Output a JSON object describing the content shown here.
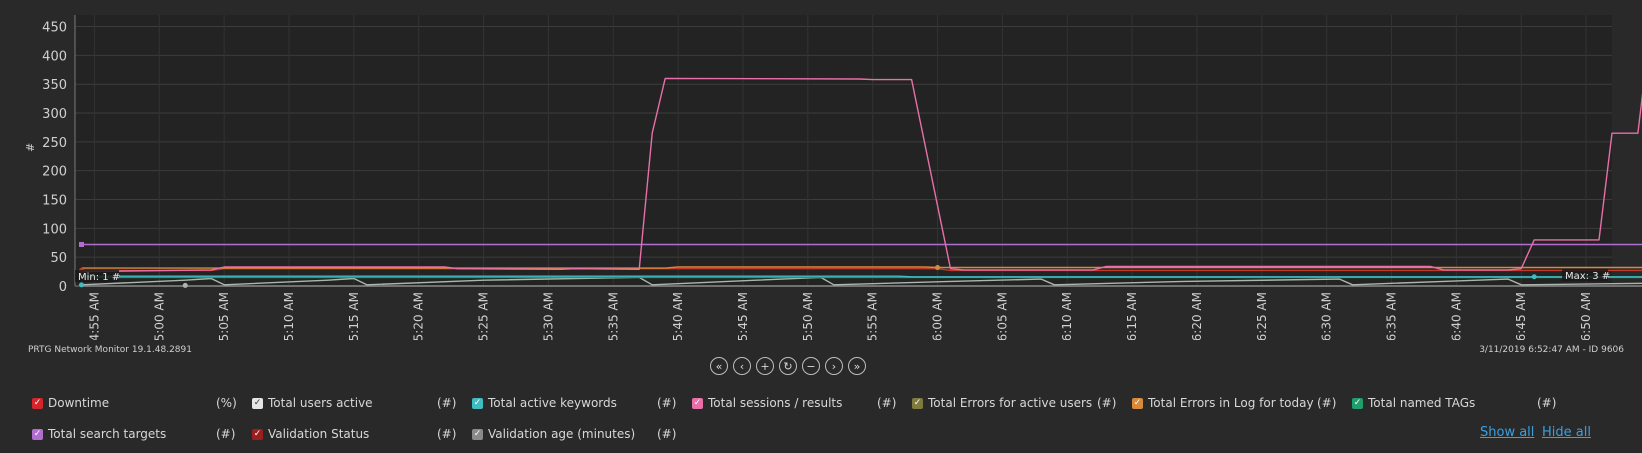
{
  "chart_data": {
    "type": "line",
    "ylabel": "#",
    "ylim": [
      0,
      470
    ],
    "yticks": [
      0,
      50,
      100,
      150,
      200,
      250,
      300,
      350,
      400,
      450
    ],
    "x_tick_labels": [
      "4:55 AM",
      "5:00 AM",
      "5:05 AM",
      "5:10 AM",
      "5:15 AM",
      "5:20 AM",
      "5:25 AM",
      "5:30 AM",
      "5:35 AM",
      "5:40 AM",
      "5:45 AM",
      "5:50 AM",
      "5:55 AM",
      "6:00 AM",
      "6:05 AM",
      "6:10 AM",
      "6:15 AM",
      "6:20 AM",
      "6:25 AM",
      "6:30 AM",
      "6:35 AM",
      "6:40 AM",
      "6:45 AM",
      "6:50 AM"
    ],
    "x_range_minutes": [
      293.5,
      412
    ],
    "grid": true,
    "min_label": "Min: 1 #",
    "max_label": "Max: 3 #",
    "series": [
      {
        "name": "Total sessions / results",
        "color": "#e86fa8",
        "points": [
          [
            294,
            25
          ],
          [
            304,
            28
          ],
          [
            305,
            33
          ],
          [
            322,
            33
          ],
          [
            323,
            30
          ],
          [
            331,
            29
          ],
          [
            332,
            30
          ],
          [
            337,
            29
          ],
          [
            338,
            265
          ],
          [
            339,
            360
          ],
          [
            354,
            359
          ],
          [
            355,
            358
          ],
          [
            358,
            358
          ],
          [
            361,
            30
          ],
          [
            362,
            28
          ],
          [
            372,
            28
          ],
          [
            373,
            34
          ],
          [
            398,
            34
          ],
          [
            399,
            28
          ],
          [
            404,
            28
          ],
          [
            405,
            30
          ],
          [
            406,
            80
          ],
          [
            411,
            80
          ],
          [
            412,
            265
          ],
          [
            414,
            265
          ],
          [
            415,
            455
          ],
          [
            416,
            455
          ]
        ]
      },
      {
        "name": "Total search targets",
        "color": "#b06fd0",
        "points": [
          [
            294,
            72
          ],
          [
            416,
            72
          ]
        ]
      },
      {
        "name": "Total Errors in Log for today",
        "color": "#d88a3a",
        "points": [
          [
            294,
            31
          ],
          [
            339,
            31
          ],
          [
            340,
            33
          ],
          [
            359,
            33
          ],
          [
            360,
            32
          ],
          [
            416,
            32
          ]
        ]
      },
      {
        "name": "Validation Status",
        "color": "#c0392b",
        "points": [
          [
            294,
            27
          ],
          [
            304,
            27
          ],
          [
            305,
            30
          ],
          [
            360,
            30
          ],
          [
            361,
            27
          ],
          [
            416,
            27
          ]
        ]
      },
      {
        "name": "Total active keywords",
        "color": "#3fbcc0",
        "points": [
          [
            294,
            17
          ],
          [
            357,
            17
          ],
          [
            358,
            16
          ],
          [
            416,
            16
          ]
        ]
      },
      {
        "name": "Total named TAGs",
        "color": "#1f9e6c",
        "points": [
          [
            294,
            15
          ],
          [
            416,
            15
          ]
        ]
      },
      {
        "name": "Total users active",
        "color": "#aab5b0",
        "points": [
          [
            294,
            2
          ],
          [
            302,
            10
          ],
          [
            304,
            13
          ],
          [
            305,
            2
          ],
          [
            313,
            10
          ],
          [
            315,
            13
          ],
          [
            316,
            2
          ],
          [
            325,
            10
          ],
          [
            337,
            15
          ],
          [
            338,
            2
          ],
          [
            346,
            10
          ],
          [
            351,
            15
          ],
          [
            352,
            2
          ],
          [
            361,
            8
          ],
          [
            368,
            12
          ],
          [
            369,
            2
          ],
          [
            379,
            8
          ],
          [
            391,
            12
          ],
          [
            392,
            2
          ],
          [
            399,
            8
          ],
          [
            404,
            12
          ],
          [
            405,
            2
          ],
          [
            416,
            5
          ]
        ]
      },
      {
        "name": "Validation age (minutes)",
        "color": "#8a8a8a",
        "points": [
          [
            294,
            0
          ],
          [
            416,
            0
          ]
        ]
      }
    ]
  },
  "footer": {
    "app_version": "PRTG Network Monitor 19.1.48.2891",
    "timestamp_id": "3/11/2019 6:52:47 AM - ID 9606"
  },
  "nav": {
    "first": "«",
    "prev": "‹",
    "zoom_in": "+",
    "reset": "↻",
    "zoom_out": "−",
    "next": "›",
    "last": "»"
  },
  "legend": [
    {
      "label": "Downtime",
      "unit": "(%)",
      "color": "#d6242b",
      "checked": true
    },
    {
      "label": "Total users active",
      "unit": "(#)",
      "color": "#e6e6e6",
      "checked": true
    },
    {
      "label": "Total active keywords",
      "unit": "(#)",
      "color": "#3fbcc0",
      "checked": true
    },
    {
      "label": "Total sessions / results",
      "unit": "(#)",
      "color": "#e86fa8",
      "checked": true
    },
    {
      "label": "Total Errors for active users",
      "unit": "(#)",
      "color": "#7f7a3e",
      "checked": true
    },
    {
      "label": "Total Errors in Log for today",
      "unit": "(#)",
      "color": "#d88a3a",
      "checked": true
    },
    {
      "label": "Total named TAGs",
      "unit": "(#)",
      "color": "#1f9e6c",
      "checked": true
    },
    {
      "label": "Total search targets",
      "unit": "(#)",
      "color": "#b06fd0",
      "checked": true
    },
    {
      "label": "Validation Status",
      "unit": "(#)",
      "color": "#9c1f1f",
      "checked": true
    },
    {
      "label": "Validation age (minutes)",
      "unit": "(#)",
      "color": "#8a8a8a",
      "checked": true
    }
  ],
  "links": {
    "show_all": "Show all",
    "hide_all": "Hide all"
  }
}
